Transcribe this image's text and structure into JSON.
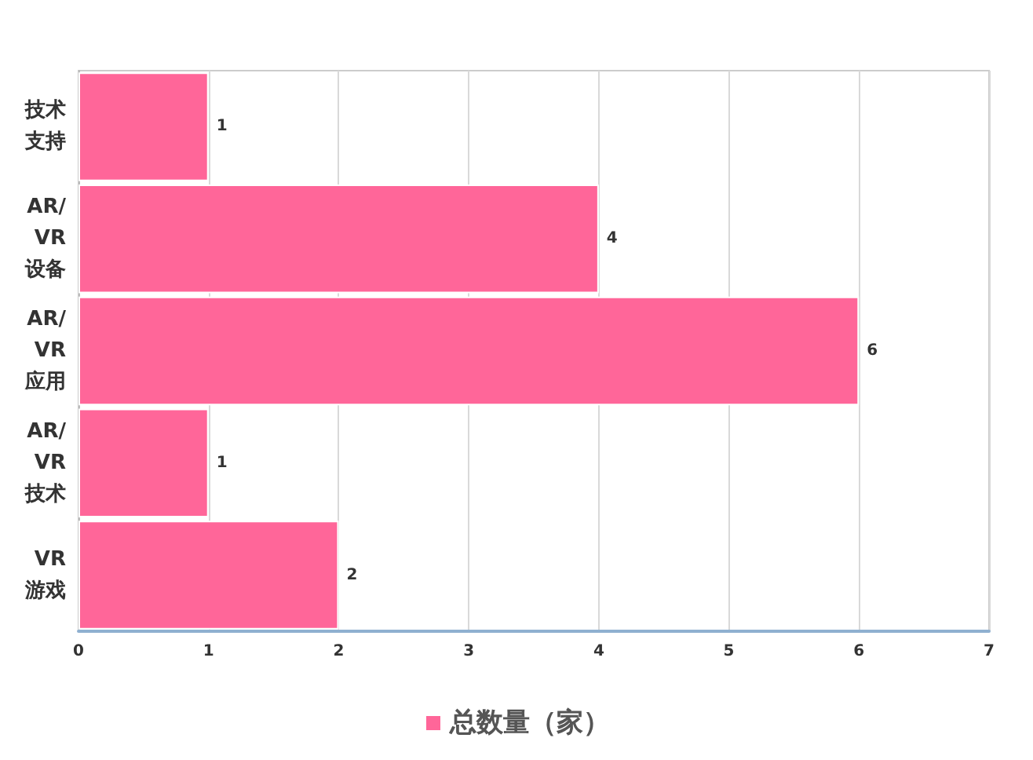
{
  "chart_data": {
    "type": "bar",
    "orientation": "horizontal",
    "categories": [
      "技术支持",
      "AR/VR设备",
      "AR/VR应用",
      "AR/VR技术",
      "VR游戏"
    ],
    "series": [
      {
        "name": "总数量（家）",
        "color": "#ff6699",
        "values": [
          1,
          4,
          6,
          1,
          2
        ]
      }
    ],
    "xlim": [
      0,
      7
    ],
    "xticks": [
      0,
      1,
      2,
      3,
      4,
      5,
      6,
      7
    ],
    "grid": "x",
    "legend": "bottom",
    "data_labels": true
  }
}
